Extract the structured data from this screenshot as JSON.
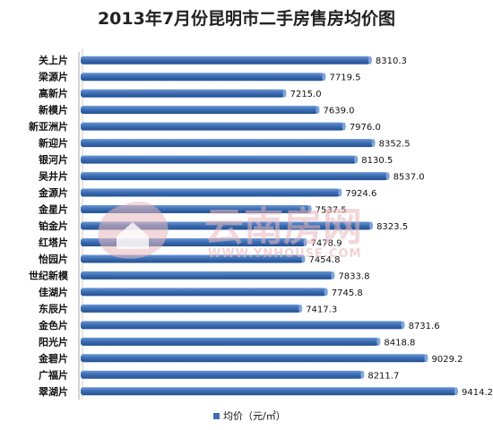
{
  "chart_data": {
    "type": "bar",
    "orientation": "horizontal",
    "title": "2013年7月份昆明市二手房售房均价图",
    "categories": [
      "关上片",
      "梁源片",
      "高新片",
      "新模片",
      "新亚洲片",
      "新迎片",
      "银河片",
      "吴井片",
      "金源片",
      "金星片",
      "铂金片",
      "红塔片",
      "怡园片",
      "世纪新模",
      "佳湖片",
      "东辰片",
      "金色片",
      "阳光片",
      "金碧片",
      "广福片",
      "翠湖片"
    ],
    "values": [
      8310.3,
      7719.5,
      7215.0,
      7639.0,
      7976.0,
      8352.5,
      8130.5,
      8537.0,
      7924.6,
      7537.5,
      8323.5,
      7478.9,
      7454.8,
      7833.8,
      7745.8,
      7417.3,
      8731.6,
      8418.8,
      9029.2,
      8211.7,
      9414.2
    ],
    "value_labels": [
      "8310.3",
      "7719.5",
      "7215.0",
      "7639.0",
      "7976.0",
      "8352.5",
      "8130.5",
      "8537.0",
      "7924.6",
      "7537.5",
      "8323.5",
      "7478.9",
      "7454.8",
      "7833.8",
      "7745.8",
      "7417.3",
      "8731.6",
      "8418.8",
      "9029.2",
      "8211.7",
      "9414.2"
    ],
    "series": [
      {
        "name": "均价（元/㎡）"
      }
    ],
    "legend_position": "bottom-center",
    "grid": false,
    "bar_color": "#3d6fb6",
    "watermark": {
      "text": "云南房网",
      "sub": "WWW.YNHOUSE.COM",
      "color": "#e8b8bc"
    }
  }
}
